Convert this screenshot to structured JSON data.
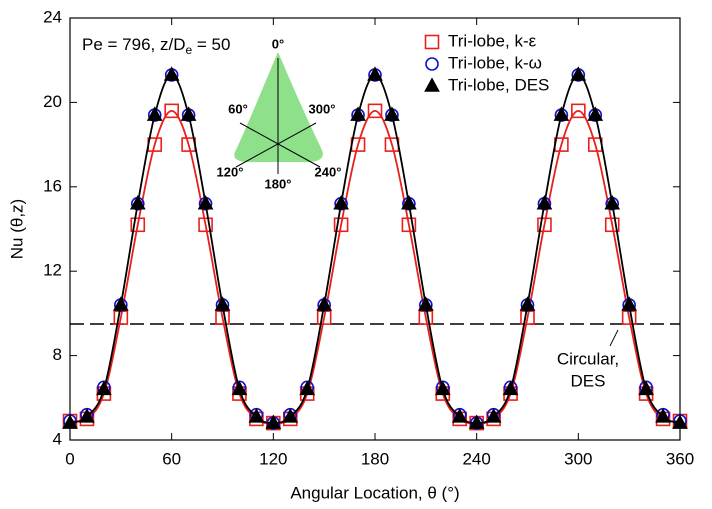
{
  "chart_data": {
    "type": "line",
    "x_label": "Angular Location, θ (°)",
    "y_label": "Nu (θ,z)",
    "annotation": {
      "text": "Pe = 796, z/D",
      "sub": "e",
      "after": " = 50"
    },
    "x": [
      0,
      10,
      20,
      30,
      40,
      50,
      60,
      70,
      80,
      90,
      100,
      110,
      120,
      130,
      140,
      150,
      160,
      170,
      180,
      190,
      200,
      210,
      220,
      230,
      240,
      250,
      260,
      270,
      280,
      290,
      300,
      310,
      320,
      330,
      340,
      350,
      360
    ],
    "series": [
      {
        "name": "Tri-lobe, k-ε",
        "color": "#e8201c",
        "marker": "square",
        "line": true,
        "values": [
          4.9,
          5.0,
          6.2,
          9.8,
          14.2,
          18.0,
          19.6,
          18.0,
          14.2,
          9.8,
          6.2,
          5.0,
          4.8,
          5.0,
          6.2,
          9.8,
          14.2,
          18.0,
          19.6,
          18.0,
          14.2,
          9.8,
          6.2,
          5.0,
          4.8,
          5.0,
          6.2,
          9.8,
          14.2,
          18.0,
          19.6,
          18.0,
          14.2,
          9.8,
          6.2,
          5.0,
          4.9
        ]
      },
      {
        "name": "Tri-lobe, k-ω",
        "color": "#1010d0",
        "marker": "circle",
        "line": false,
        "values": [
          4.9,
          5.2,
          6.5,
          10.4,
          15.2,
          19.4,
          21.3,
          19.4,
          15.2,
          10.4,
          6.5,
          5.2,
          4.8,
          5.2,
          6.5,
          10.4,
          15.2,
          19.4,
          21.3,
          19.4,
          15.2,
          10.4,
          6.5,
          5.2,
          4.8,
          5.2,
          6.5,
          10.4,
          15.2,
          19.4,
          21.3,
          19.4,
          15.2,
          10.4,
          6.5,
          5.2,
          4.9
        ]
      },
      {
        "name": "Tri-lobe, DES",
        "color": "#000000",
        "marker": "triangle",
        "line": true,
        "values": [
          4.8,
          5.1,
          6.4,
          10.4,
          15.2,
          19.4,
          21.3,
          19.4,
          15.2,
          10.4,
          6.4,
          5.1,
          4.8,
          5.1,
          6.4,
          10.4,
          15.2,
          19.4,
          21.3,
          19.4,
          15.2,
          10.4,
          6.4,
          5.1,
          4.8,
          5.1,
          6.4,
          10.4,
          15.2,
          19.4,
          21.3,
          19.4,
          15.2,
          10.4,
          6.4,
          5.1,
          4.8
        ]
      }
    ],
    "reference_line": {
      "value": 9.5,
      "label_lines": [
        "Circular,",
        "DES"
      ],
      "color": "#000000",
      "dashed": true
    },
    "inset": {
      "labels": [
        "0°",
        "60°",
        "300°",
        "120°",
        "180°",
        "240°"
      ],
      "color": "#8ee08a"
    },
    "xlim": [
      0,
      360
    ],
    "xticks": [
      0,
      60,
      120,
      180,
      240,
      300,
      360
    ],
    "ylim": [
      4,
      24
    ],
    "yticks": [
      4,
      8,
      12,
      16,
      20,
      24
    ],
    "legend": "upper right"
  }
}
